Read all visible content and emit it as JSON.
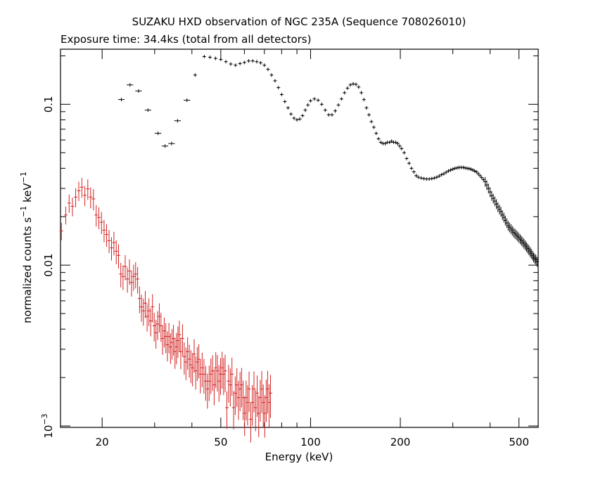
{
  "chart_data": {
    "type": "scatter",
    "title": "SUZAKU HXD observation of NGC 235A (Sequence 708026010)",
    "subtitle": "Exposure time: 34.4ks (total from all detectors)",
    "xlabel": "Energy (keV)",
    "ylabel_main": "normalized counts s",
    "ylabel_sup1": "−1",
    "ylabel_mid": " keV",
    "ylabel_sup2": "−1",
    "x_scale": "log",
    "y_scale": "log",
    "xlim": [
      14.5,
      580
    ],
    "ylim": [
      0.00098,
      0.22
    ],
    "x_ticks": [
      {
        "value": 20,
        "label": "20"
      },
      {
        "value": 50,
        "label": "50"
      },
      {
        "value": 100,
        "label": "100"
      },
      {
        "value": 200,
        "label": "200"
      },
      {
        "value": 500,
        "label": "500"
      }
    ],
    "y_ticks": [
      {
        "value": 0.001,
        "label": "10",
        "sup": "−3"
      },
      {
        "value": 0.01,
        "label": "0.01",
        "sup": ""
      },
      {
        "value": 0.1,
        "label": "0.1",
        "sup": ""
      }
    ],
    "colors": {
      "pin": "#d42020",
      "gso": "#000000",
      "axes": "#000000"
    },
    "series": [
      {
        "color": "#000000",
        "points": [
          [
            23.2,
            0.107
          ],
          [
            24.8,
            0.132
          ],
          [
            26.5,
            0.121
          ],
          [
            28.5,
            0.092
          ],
          [
            30.8,
            0.066
          ],
          [
            32.5,
            0.055
          ],
          [
            34.2,
            0.057
          ],
          [
            35.8,
            0.079
          ],
          [
            38.5,
            0.106
          ],
          [
            41,
            0.152
          ],
          [
            44,
            0.198
          ],
          [
            46,
            0.196
          ],
          [
            48,
            0.193
          ],
          [
            50,
            0.19
          ],
          [
            52,
            0.184
          ],
          [
            54,
            0.178
          ],
          [
            56,
            0.175
          ],
          [
            58,
            0.179
          ],
          [
            60,
            0.182
          ],
          [
            62,
            0.186
          ],
          [
            64,
            0.186
          ],
          [
            66,
            0.184
          ],
          [
            68,
            0.181
          ],
          [
            70,
            0.175
          ],
          [
            72,
            0.165
          ],
          [
            74,
            0.152
          ],
          [
            76,
            0.14
          ],
          [
            78,
            0.127
          ],
          [
            80,
            0.115
          ],
          [
            82,
            0.104
          ],
          [
            84,
            0.095
          ],
          [
            86,
            0.087
          ],
          [
            88,
            0.082
          ],
          [
            90,
            0.08
          ],
          [
            92,
            0.081
          ],
          [
            94,
            0.085
          ],
          [
            96,
            0.092
          ],
          [
            98,
            0.099
          ],
          [
            100,
            0.105
          ],
          [
            103,
            0.108
          ],
          [
            106,
            0.106
          ],
          [
            109,
            0.1
          ],
          [
            112,
            0.092
          ],
          [
            115,
            0.086
          ],
          [
            118,
            0.086
          ],
          [
            121,
            0.091
          ],
          [
            124,
            0.099
          ],
          [
            127,
            0.108
          ],
          [
            130,
            0.118
          ],
          [
            133,
            0.126
          ],
          [
            136,
            0.132
          ],
          [
            139,
            0.134
          ],
          [
            142,
            0.133
          ],
          [
            145,
            0.128
          ],
          [
            148,
            0.118
          ],
          [
            151,
            0.107
          ],
          [
            154,
            0.095
          ],
          [
            157,
            0.086
          ],
          [
            160,
            0.078
          ],
          [
            163,
            0.072
          ],
          [
            166,
            0.066
          ],
          [
            169,
            0.061
          ],
          [
            172,
            0.058
          ],
          [
            175,
            0.057
          ],
          [
            178,
            0.057
          ],
          [
            181,
            0.058
          ],
          [
            184,
            0.058
          ],
          [
            187,
            0.059
          ],
          [
            190,
            0.058
          ],
          [
            193,
            0.058
          ],
          [
            196,
            0.057
          ],
          [
            199,
            0.055
          ],
          [
            202,
            0.053
          ],
          [
            206,
            0.05
          ],
          [
            210,
            0.046
          ],
          [
            214,
            0.043
          ],
          [
            218,
            0.04
          ],
          [
            222,
            0.038
          ],
          [
            226,
            0.036
          ],
          [
            230,
            0.0352
          ],
          [
            235,
            0.0348
          ],
          [
            240,
            0.0345
          ],
          [
            245,
            0.0343
          ],
          [
            250,
            0.0343
          ],
          [
            255,
            0.0345
          ],
          [
            260,
            0.0348
          ],
          [
            265,
            0.0352
          ],
          [
            270,
            0.0358
          ],
          [
            275,
            0.0365
          ],
          [
            280,
            0.037
          ],
          [
            285,
            0.0378
          ],
          [
            290,
            0.0385
          ],
          [
            295,
            0.039
          ],
          [
            300,
            0.0395
          ],
          [
            305,
            0.04
          ],
          [
            310,
            0.0402
          ],
          [
            315,
            0.0405
          ],
          [
            320,
            0.0405
          ],
          [
            325,
            0.0405
          ],
          [
            330,
            0.0402
          ],
          [
            335,
            0.04
          ],
          [
            340,
            0.0398
          ],
          [
            345,
            0.0395
          ],
          [
            350,
            0.039
          ],
          [
            355,
            0.0385
          ],
          [
            360,
            0.038
          ],
          [
            365,
            0.037
          ],
          [
            370,
            0.036
          ],
          [
            375,
            0.035
          ],
          [
            380,
            0.034
          ],
          [
            385,
            0.033
          ],
          [
            390,
            0.0315
          ],
          [
            395,
            0.03
          ],
          [
            400,
            0.0285
          ],
          [
            405,
            0.027
          ],
          [
            410,
            0.026
          ],
          [
            415,
            0.025
          ],
          [
            420,
            0.024
          ],
          [
            425,
            0.023
          ],
          [
            430,
            0.0222
          ],
          [
            435,
            0.0215
          ],
          [
            440,
            0.0205
          ],
          [
            445,
            0.0198
          ],
          [
            450,
            0.019
          ],
          [
            455,
            0.0183
          ],
          [
            460,
            0.0176
          ],
          [
            465,
            0.0172
          ],
          [
            470,
            0.0168
          ],
          [
            475,
            0.0164
          ],
          [
            480,
            0.016
          ],
          [
            485,
            0.0157
          ],
          [
            490,
            0.0154
          ],
          [
            495,
            0.0151
          ],
          [
            500,
            0.0148
          ],
          [
            505,
            0.0145
          ],
          [
            510,
            0.0142
          ],
          [
            515,
            0.0139
          ],
          [
            520,
            0.0136
          ],
          [
            525,
            0.0133
          ],
          [
            530,
            0.013
          ],
          [
            535,
            0.0127
          ],
          [
            540,
            0.0124
          ],
          [
            545,
            0.0121
          ],
          [
            550,
            0.0118
          ],
          [
            555,
            0.0115
          ],
          [
            560,
            0.0112
          ],
          [
            565,
            0.011
          ],
          [
            570,
            0.0108
          ],
          [
            575,
            0.0105
          ]
        ]
      },
      {
        "color": "#d42020",
        "points": [
          [
            14.6,
            0.0163
          ],
          [
            15.1,
            0.0205
          ],
          [
            15.5,
            0.0243
          ],
          [
            15.9,
            0.0232
          ],
          [
            16.3,
            0.0265
          ],
          [
            16.7,
            0.029
          ],
          [
            17.1,
            0.0305
          ],
          [
            17.5,
            0.0272
          ],
          [
            17.9,
            0.0298
          ],
          [
            18.3,
            0.0265
          ],
          [
            18.7,
            0.0258
          ],
          [
            19.1,
            0.0205
          ],
          [
            19.5,
            0.0198
          ],
          [
            19.9,
            0.0185
          ],
          [
            20.3,
            0.0165
          ],
          [
            20.7,
            0.0155
          ],
          [
            21.1,
            0.0142
          ],
          [
            21.5,
            0.0128
          ],
          [
            21.9,
            0.0138
          ],
          [
            22.3,
            0.0122
          ],
          [
            22.7,
            0.0115
          ],
          [
            23.1,
            0.0088
          ],
          [
            23.5,
            0.0085
          ],
          [
            23.9,
            0.0098
          ],
          [
            24.3,
            0.0082
          ],
          [
            24.7,
            0.0092
          ],
          [
            25.1,
            0.0078
          ],
          [
            25.5,
            0.0085
          ],
          [
            25.9,
            0.0088
          ],
          [
            26.3,
            0.0082
          ],
          [
            26.7,
            0.0062
          ],
          [
            27.1,
            0.0055
          ],
          [
            27.5,
            0.0052
          ],
          [
            27.9,
            0.0058
          ],
          [
            28.3,
            0.0048
          ],
          [
            28.7,
            0.0052
          ],
          [
            29.1,
            0.0045
          ],
          [
            29.5,
            0.0055
          ],
          [
            29.9,
            0.0042
          ],
          [
            30.3,
            0.0038
          ],
          [
            30.7,
            0.0043
          ],
          [
            31.1,
            0.0048
          ],
          [
            31.5,
            0.0042
          ],
          [
            31.9,
            0.0035
          ],
          [
            32.3,
            0.0039
          ],
          [
            32.7,
            0.0036
          ],
          [
            33.1,
            0.0032
          ],
          [
            33.5,
            0.0036
          ],
          [
            33.9,
            0.0031
          ],
          [
            34.3,
            0.0033
          ],
          [
            34.7,
            0.0035
          ],
          [
            35.1,
            0.0029
          ],
          [
            35.5,
            0.0031
          ],
          [
            35.9,
            0.0034
          ],
          [
            36.3,
            0.0037
          ],
          [
            36.7,
            0.0029
          ],
          [
            37.2,
            0.0035
          ],
          [
            37.7,
            0.0027
          ],
          [
            38.2,
            0.0025
          ],
          [
            38.7,
            0.0029
          ],
          [
            39.2,
            0.0026
          ],
          [
            39.7,
            0.0024
          ],
          [
            40.2,
            0.0023
          ],
          [
            40.7,
            0.0028
          ],
          [
            41.2,
            0.0022
          ],
          [
            41.7,
            0.0025
          ],
          [
            42.2,
            0.0026
          ],
          [
            42.7,
            0.0021
          ],
          [
            43.3,
            0.0023
          ],
          [
            43.9,
            0.0021
          ],
          [
            44.5,
            0.0019
          ],
          [
            45.1,
            0.0017
          ],
          [
            45.7,
            0.0019
          ],
          [
            46.3,
            0.0021
          ],
          [
            46.9,
            0.0022
          ],
          [
            47.5,
            0.0018
          ],
          [
            48.1,
            0.0023
          ],
          [
            48.7,
            0.0022
          ],
          [
            49.3,
            0.0019
          ],
          [
            49.9,
            0.0021
          ],
          [
            50.5,
            0.0023
          ],
          [
            51.1,
            0.0021
          ],
          [
            51.7,
            0.0022
          ],
          [
            52.4,
            0.0013
          ],
          [
            53.1,
            0.0019
          ],
          [
            53.8,
            0.0018
          ],
          [
            54.5,
            0.0021
          ],
          [
            55.2,
            0.0013
          ],
          [
            55.9,
            0.0016
          ],
          [
            56.6,
            0.0018
          ],
          [
            57.3,
            0.0015
          ],
          [
            58,
            0.0017
          ],
          [
            58.7,
            0.0018
          ],
          [
            59.4,
            0.0015
          ],
          [
            60.1,
            0.0012
          ],
          [
            60.8,
            0.0015
          ],
          [
            61.5,
            0.0014
          ],
          [
            62.2,
            0.0017
          ],
          [
            63,
            0.0011
          ],
          [
            63.8,
            0.0014
          ],
          [
            64.6,
            0.0017
          ],
          [
            65.4,
            0.0013
          ],
          [
            66.2,
            0.0016
          ],
          [
            67,
            0.0012
          ],
          [
            67.8,
            0.0015
          ],
          [
            68.6,
            0.0017
          ],
          [
            69.4,
            0.0014
          ],
          [
            70.2,
            0.0012
          ],
          [
            71,
            0.0015
          ],
          [
            71.8,
            0.0017
          ],
          [
            72.6,
            0.0014
          ],
          [
            73.4,
            0.0016
          ]
        ]
      }
    ]
  }
}
